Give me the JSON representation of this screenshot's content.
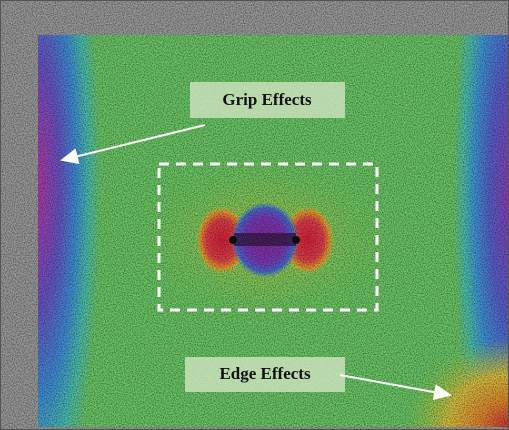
{
  "annotations": [
    {
      "label": "Grip Effects"
    },
    {
      "label": "Edge Effects"
    }
  ]
}
